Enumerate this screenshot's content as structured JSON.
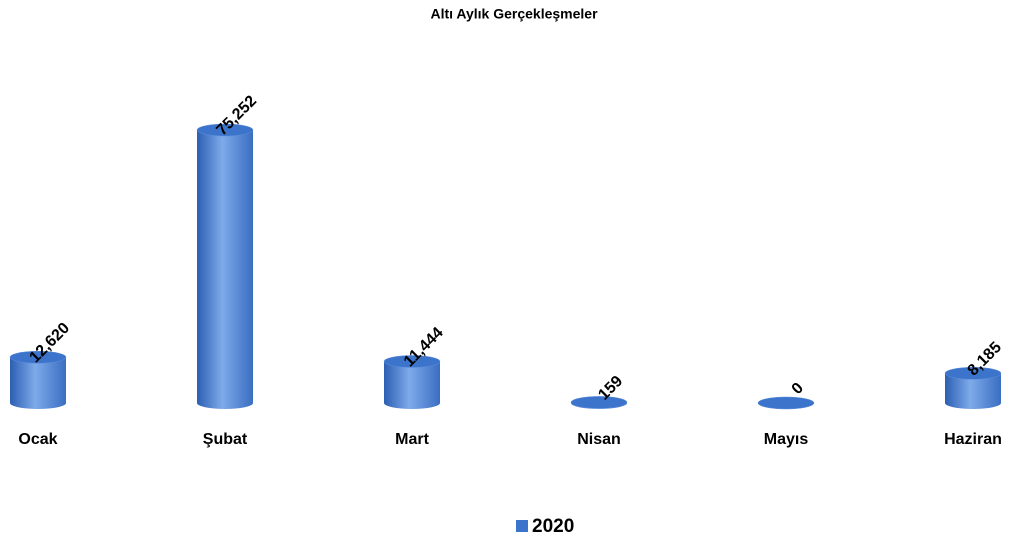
{
  "chart_data": {
    "type": "bar",
    "title": "Altı Aylık Gerçekleşmeler",
    "categories": [
      "Ocak",
      "Şubat",
      "Mart",
      "Nisan",
      "Mayıs",
      "Haziran"
    ],
    "series": [
      {
        "name": "2020",
        "color": "#3c74cc",
        "values": [
          12620,
          75252,
          11444,
          159,
          0,
          8185
        ],
        "value_labels": [
          "12,620",
          "75,252",
          "11,444",
          "159",
          "0",
          "8,185"
        ]
      }
    ]
  }
}
